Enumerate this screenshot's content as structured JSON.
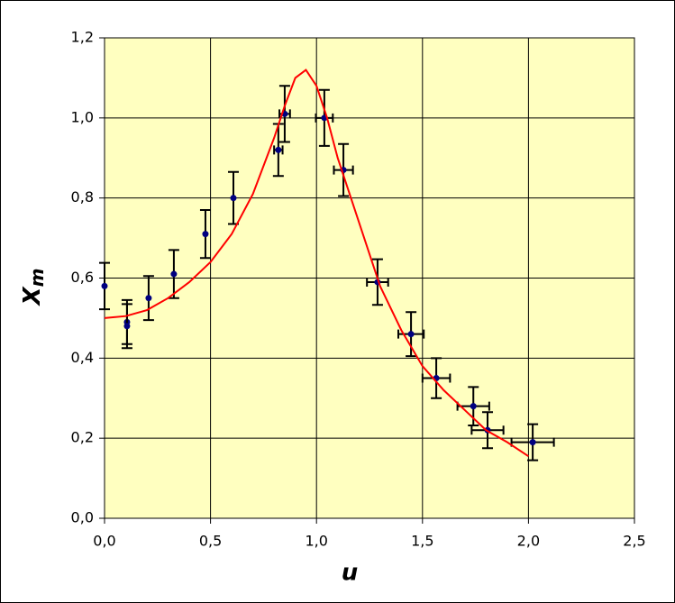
{
  "chart_data": {
    "type": "scatter",
    "x_label": "u",
    "y_label": {
      "text": "X",
      "subscript": "m"
    },
    "xlim": [
      0,
      2.5
    ],
    "ylim": [
      0,
      1.2
    ],
    "xticks": [
      {
        "value": 0,
        "label": "0,0"
      },
      {
        "value": 0.5,
        "label": "0,5"
      },
      {
        "value": 1,
        "label": "1,0"
      },
      {
        "value": 1.5,
        "label": "1,5"
      },
      {
        "value": 2,
        "label": "2,0"
      },
      {
        "value": 2.5,
        "label": "2,5"
      }
    ],
    "yticks": [
      {
        "value": 0,
        "label": "0,0"
      },
      {
        "value": 0.2,
        "label": "0,2"
      },
      {
        "value": 0.4,
        "label": "0,4"
      },
      {
        "value": 0.6,
        "label": "0,6"
      },
      {
        "value": 0.8,
        "label": "0,8"
      },
      {
        "value": 1,
        "label": "1,0"
      },
      {
        "value": 1.2,
        "label": "1,2"
      }
    ],
    "grid": true,
    "background": "#ffffc0",
    "series": [
      {
        "type": "scatter",
        "color": "#000080",
        "x": [
          0,
          0.106,
          0.106,
          0.208,
          0.327,
          0.476,
          0.608,
          0.82,
          0.85,
          1.037,
          1.127,
          1.288,
          1.446,
          1.565,
          1.74,
          1.807,
          2.02
        ],
        "values": [
          0.58,
          0.49,
          0.48,
          0.55,
          0.61,
          0.71,
          0.8,
          0.92,
          1.01,
          1.0,
          0.87,
          0.59,
          0.46,
          0.35,
          0.28,
          0.22,
          0.19
        ],
        "xerr": [
          null,
          null,
          null,
          null,
          null,
          null,
          null,
          0.02,
          0.025,
          0.04,
          0.045,
          0.05,
          0.06,
          0.065,
          0.075,
          0.075,
          0.1
        ],
        "yerr": [
          0.058,
          0.055,
          0.055,
          0.055,
          0.06,
          0.06,
          0.065,
          0.065,
          0.07,
          0.07,
          0.065,
          0.057,
          0.055,
          0.05,
          0.048,
          0.045,
          0.045
        ]
      },
      {
        "type": "line",
        "color": "#ff0000",
        "x": [
          0,
          0.1,
          0.2,
          0.3,
          0.4,
          0.5,
          0.6,
          0.7,
          0.8,
          0.85,
          0.9,
          0.95,
          1.0,
          1.05,
          1.1,
          1.2,
          1.3,
          1.4,
          1.5,
          1.6,
          1.7,
          1.8,
          1.9,
          2.0
        ],
        "values": [
          0.5,
          0.505,
          0.52,
          0.55,
          0.59,
          0.64,
          0.71,
          0.81,
          0.95,
          1.03,
          1.1,
          1.12,
          1.08,
          1.0,
          0.9,
          0.74,
          0.58,
          0.47,
          0.38,
          0.32,
          0.27,
          0.22,
          0.19,
          0.155
        ]
      }
    ]
  }
}
